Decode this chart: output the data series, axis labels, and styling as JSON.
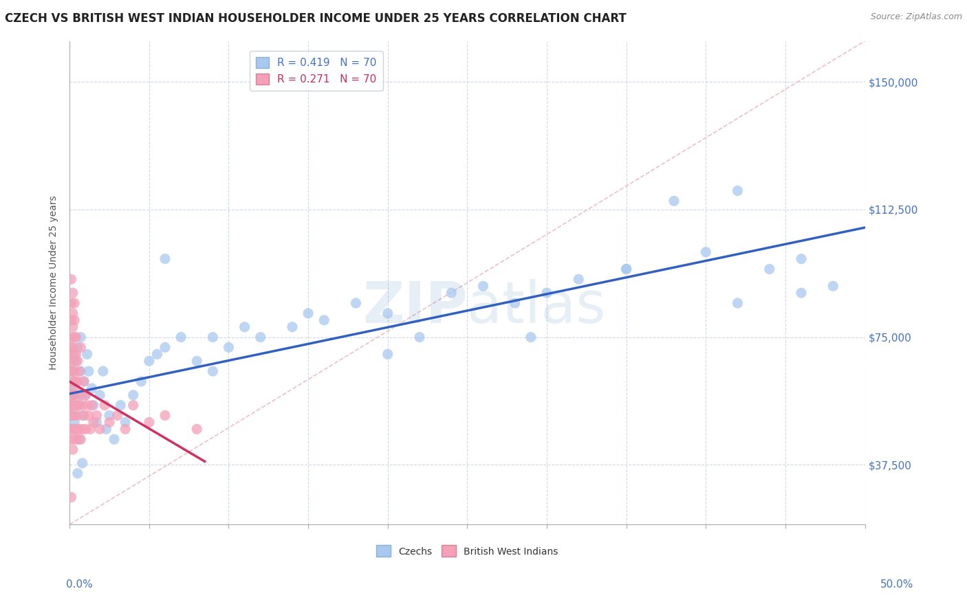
{
  "title": "CZECH VS BRITISH WEST INDIAN HOUSEHOLDER INCOME UNDER 25 YEARS CORRELATION CHART",
  "source": "Source: ZipAtlas.com",
  "ylabel": "Householder Income Under 25 years",
  "xlim": [
    0.0,
    0.5
  ],
  "ylim": [
    20000,
    162000
  ],
  "yticks": [
    37500,
    75000,
    112500,
    150000
  ],
  "ytick_labels": [
    "$37,500",
    "$75,000",
    "$112,500",
    "$150,000"
  ],
  "watermark": "ZIPatlas",
  "czechs_color": "#a8c8f0",
  "bwi_color": "#f4a0b8",
  "czechs_line_color": "#3060c0",
  "bwi_line_color": "#d03060",
  "ref_line_color": "#e8b0b8",
  "background_color": "#ffffff",
  "grid_color": "#c8d4e8",
  "title_fontsize": 12,
  "label_fontsize": 10,
  "tick_fontsize": 11,
  "legend_fontsize": 11,
  "czechs_x": [
    0.001,
    0.001,
    0.001,
    0.002,
    0.002,
    0.002,
    0.003,
    0.003,
    0.003,
    0.004,
    0.004,
    0.005,
    0.005,
    0.006,
    0.006,
    0.007,
    0.007,
    0.008,
    0.009,
    0.01,
    0.011,
    0.012,
    0.014,
    0.015,
    0.017,
    0.019,
    0.021,
    0.023,
    0.025,
    0.028,
    0.032,
    0.035,
    0.04,
    0.045,
    0.05,
    0.055,
    0.06,
    0.07,
    0.08,
    0.09,
    0.1,
    0.11,
    0.12,
    0.14,
    0.16,
    0.18,
    0.2,
    0.22,
    0.24,
    0.26,
    0.28,
    0.3,
    0.32,
    0.35,
    0.38,
    0.4,
    0.42,
    0.44,
    0.46,
    0.48,
    0.06,
    0.09,
    0.15,
    0.2,
    0.29,
    0.35,
    0.42,
    0.46,
    0.005,
    0.008
  ],
  "czechs_y": [
    55000,
    48000,
    60000,
    52000,
    65000,
    58000,
    50000,
    62000,
    70000,
    48000,
    68000,
    55000,
    72000,
    58000,
    45000,
    65000,
    75000,
    52000,
    62000,
    58000,
    70000,
    65000,
    60000,
    55000,
    50000,
    58000,
    65000,
    48000,
    52000,
    45000,
    55000,
    50000,
    58000,
    62000,
    68000,
    70000,
    72000,
    75000,
    68000,
    75000,
    72000,
    78000,
    75000,
    78000,
    80000,
    85000,
    82000,
    75000,
    88000,
    90000,
    85000,
    88000,
    92000,
    95000,
    115000,
    100000,
    118000,
    95000,
    98000,
    90000,
    98000,
    65000,
    82000,
    70000,
    75000,
    95000,
    85000,
    88000,
    35000,
    38000
  ],
  "bwi_x": [
    0.001,
    0.001,
    0.001,
    0.001,
    0.001,
    0.001,
    0.001,
    0.001,
    0.001,
    0.001,
    0.002,
    0.002,
    0.002,
    0.002,
    0.002,
    0.002,
    0.002,
    0.002,
    0.002,
    0.002,
    0.003,
    0.003,
    0.003,
    0.003,
    0.003,
    0.003,
    0.003,
    0.003,
    0.003,
    0.003,
    0.004,
    0.004,
    0.004,
    0.004,
    0.004,
    0.005,
    0.005,
    0.005,
    0.005,
    0.006,
    0.006,
    0.006,
    0.007,
    0.007,
    0.007,
    0.008,
    0.008,
    0.009,
    0.009,
    0.01,
    0.01,
    0.011,
    0.012,
    0.013,
    0.014,
    0.015,
    0.017,
    0.019,
    0.022,
    0.025,
    0.03,
    0.035,
    0.04,
    0.05,
    0.06,
    0.08,
    0.001,
    0.002,
    0.003,
    0.001
  ],
  "bwi_y": [
    65000,
    72000,
    80000,
    58000,
    52000,
    85000,
    45000,
    75000,
    68000,
    55000,
    62000,
    70000,
    78000,
    58000,
    48000,
    82000,
    55000,
    65000,
    42000,
    72000,
    52000,
    60000,
    68000,
    75000,
    58000,
    48000,
    80000,
    55000,
    65000,
    45000,
    62000,
    70000,
    55000,
    48000,
    75000,
    52000,
    62000,
    68000,
    45000,
    55000,
    65000,
    48000,
    58000,
    72000,
    45000,
    55000,
    48000,
    62000,
    52000,
    58000,
    48000,
    55000,
    52000,
    48000,
    55000,
    50000,
    52000,
    48000,
    55000,
    50000,
    52000,
    48000,
    55000,
    50000,
    52000,
    48000,
    92000,
    88000,
    85000,
    28000
  ]
}
